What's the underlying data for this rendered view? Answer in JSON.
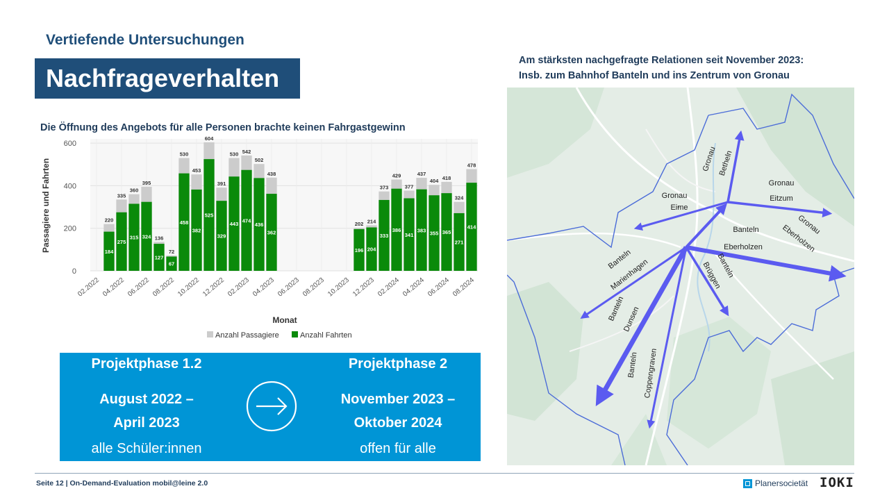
{
  "header": {
    "subtitle": "Vertiefende Untersuchungen",
    "title": "Nachfrageverhalten"
  },
  "chart_caption": "Die Öffnung des Angebots für alle Personen brachte keinen Fahrgastgewinn",
  "chart_data": {
    "type": "bar",
    "stacked": "overlay",
    "title": "",
    "xlabel": "Monat",
    "ylabel": "Passagiere und Fahrten",
    "ylim": [
      0,
      620
    ],
    "yticks": [
      0,
      200,
      400,
      600
    ],
    "grid": true,
    "legend_position": "bottom",
    "categories": [
      "02.2022",
      "03.2022",
      "04.2022",
      "05.2022",
      "06.2022",
      "07.2022",
      "08.2022",
      "09.2022",
      "10.2022",
      "11.2022",
      "12.2022",
      "01.2023",
      "02.2023",
      "03.2023",
      "04.2023",
      "05.2023",
      "06.2023",
      "07.2023",
      "08.2023",
      "09.2023",
      "10.2023",
      "11.2023",
      "12.2023",
      "01.2024",
      "02.2024",
      "03.2024",
      "04.2024",
      "05.2024",
      "06.2024",
      "07.2024",
      "08.2024"
    ],
    "xtick_labels": [
      "02.2022",
      "04.2022",
      "06.2022",
      "08.2022",
      "10.2022",
      "12.2022",
      "02.2023",
      "04.2023",
      "06.2023",
      "08.2023",
      "10.2023",
      "12.2023",
      "02.2024",
      "04.2024",
      "06.2024",
      "08.2024"
    ],
    "series": [
      {
        "name": "Anzahl Passagiere",
        "color": "#cccccc",
        "values": [
          null,
          220,
          335,
          360,
          395,
          136,
          72,
          530,
          453,
          604,
          391,
          530,
          542,
          502,
          438,
          null,
          null,
          null,
          null,
          null,
          null,
          202,
          214,
          373,
          429,
          377,
          437,
          404,
          418,
          324,
          478
        ]
      },
      {
        "name": "Anzahl Fahrten",
        "color": "#0a8a0a",
        "values": [
          null,
          184,
          275,
          315,
          324,
          127,
          67,
          458,
          382,
          525,
          329,
          443,
          474,
          436,
          362,
          null,
          null,
          null,
          null,
          null,
          null,
          196,
          204,
          333,
          386,
          341,
          383,
          355,
          365,
          271,
          414
        ]
      }
    ]
  },
  "phases": {
    "left": {
      "heading": "Projektphase 1.2",
      "line1": "August 2022 –",
      "line2": "April 2023",
      "line3": "alle Schüler:innen"
    },
    "right": {
      "heading": "Projektphase 2",
      "line1": "November 2023 –",
      "line2": "Oktober 2024",
      "line3": "offen für alle"
    },
    "arrow_icon": "arrow-right-circle-icon"
  },
  "map": {
    "caption_line1": "Am stärksten nachgefragte Relationen seit November 2023:",
    "caption_line2": "Insb. zum Bahnhof Banteln und ins Zentrum von Gronau",
    "relations": [
      {
        "from": "Gronau",
        "to": "Betheln"
      },
      {
        "from": "Gronau",
        "to": "Eime"
      },
      {
        "from": "Gronau",
        "to": "Eitzum"
      },
      {
        "from": "Gronau",
        "to": "Eberholzen"
      },
      {
        "from": "Banteln",
        "to": "Eberholzen"
      },
      {
        "from": "Banteln",
        "to": "Marienhagen"
      },
      {
        "from": "Banteln",
        "to": "Brüggen"
      },
      {
        "from": "Banteln",
        "to": "Dunsen"
      },
      {
        "from": "Banteln",
        "to": "Coppengraven"
      }
    ],
    "arrow_color": "#5b5bf0"
  },
  "footer": {
    "text": "Seite 12 | On-Demand-Evaluation mobil@leine 2.0",
    "logo1": "Planersocietät",
    "logo2": "IOKI"
  }
}
